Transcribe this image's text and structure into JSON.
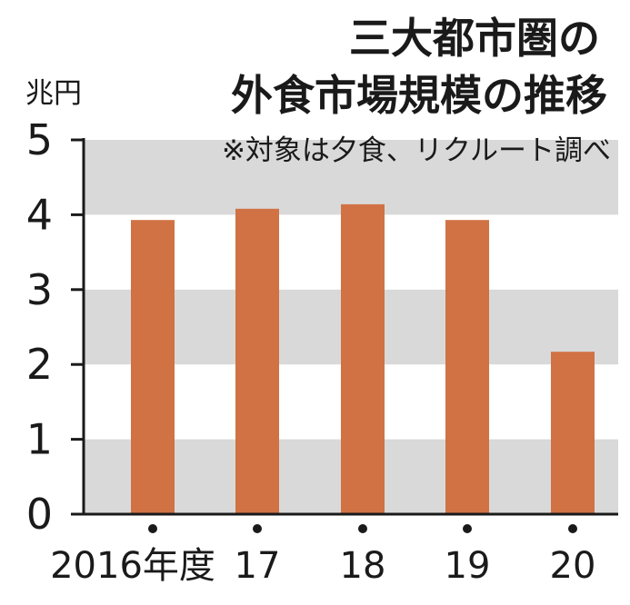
{
  "chart_data": {
    "type": "bar",
    "title_lines": [
      "三大都市圏の",
      "外食市場規模の推移"
    ],
    "note": "※対象は夕食、リクルート調べ",
    "ylabel": "兆円",
    "categories": [
      "2016年度",
      "17",
      "18",
      "19",
      "20"
    ],
    "values": [
      3.93,
      4.08,
      4.14,
      3.93,
      2.17
    ],
    "ylim": [
      0,
      5
    ],
    "yticks": [
      "0",
      "1",
      "2",
      "3",
      "4",
      "5"
    ],
    "grid": "alternating bands",
    "colors": {
      "bar": "#D07244",
      "band": "#D9D9D9",
      "background": "#FFFFFF",
      "axis": "#1A1A1A"
    }
  }
}
